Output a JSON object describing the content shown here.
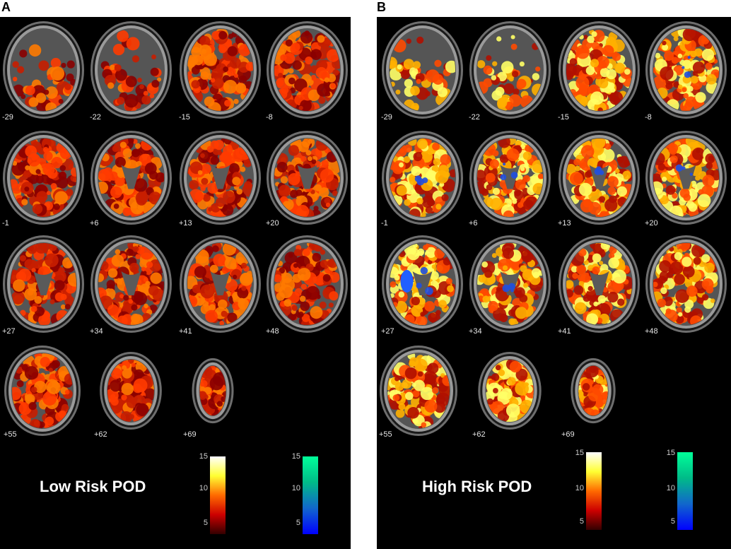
{
  "panels": [
    {
      "letter": "A",
      "title": "Low Risk POD",
      "slice_labels": [
        "-29",
        "-22",
        "-15",
        "-8",
        "-1",
        "+6",
        "+13",
        "+20",
        "+27",
        "+34",
        "+41",
        "+48",
        "+55",
        "+62",
        "+69"
      ],
      "hot_colorbar": {
        "ticks": [
          "15",
          "10",
          "5"
        ],
        "colors": [
          "#ffffff",
          "#ffff33",
          "#ff6a00",
          "#cc0000",
          "#330000"
        ]
      },
      "cold_colorbar": {
        "ticks": [
          "15",
          "10",
          "5"
        ],
        "colors": [
          "#00ff99",
          "#00bb88",
          "#1166cc",
          "#0000ff"
        ]
      },
      "activation_colors": [
        "#8b0000",
        "#c81e00",
        "#ff3b00",
        "#ff7a00"
      ]
    },
    {
      "letter": "B",
      "title": "High Risk POD",
      "slice_labels": [
        "-29",
        "-22",
        "-15",
        "-8",
        "-1",
        "+6",
        "+13",
        "+20",
        "+27",
        "+34",
        "+41",
        "+48",
        "+55",
        "+62",
        "+69"
      ],
      "hot_colorbar": {
        "ticks": [
          "15",
          "10",
          "5"
        ],
        "colors": [
          "#ffffff",
          "#ffff33",
          "#ff6a00",
          "#cc0000",
          "#330000"
        ]
      },
      "cold_colorbar": {
        "ticks": [
          "15",
          "10",
          "5"
        ],
        "colors": [
          "#00ff99",
          "#00bb88",
          "#1166cc",
          "#0000ff"
        ]
      },
      "activation_colors": [
        "#b01000",
        "#ff4a00",
        "#ffb000",
        "#ffff66"
      ]
    }
  ]
}
